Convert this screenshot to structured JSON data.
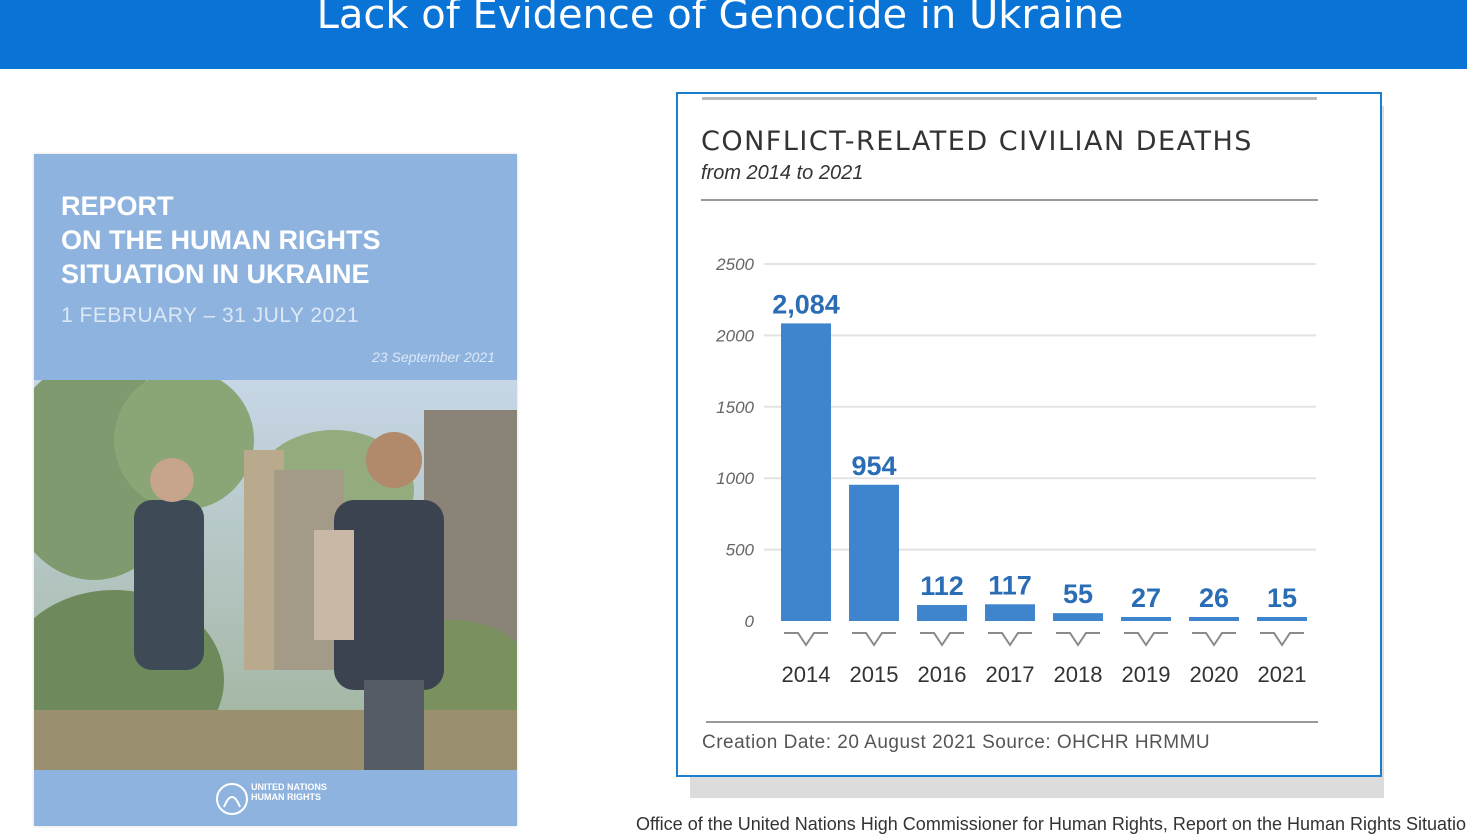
{
  "slide": {
    "title": "Lack of Evidence of Genocide in Ukraine"
  },
  "report_cover": {
    "title": "REPORT\nON THE HUMAN RIGHTS\nSITUATION IN UKRAINE",
    "dates": "1 FEBRUARY – 31 JULY 2021",
    "publication_date": "23 September 2021",
    "logo_text": "UNITED NATIONS\nHUMAN RIGHTS"
  },
  "chart": {
    "footer": "Creation Date: 20 August 2021   Source: OHCHR HRMMU"
  },
  "chart_data": {
    "type": "bar",
    "title": "CONFLICT-RELATED CIVILIAN DEATHS",
    "subtitle": "from 2014 to 2021",
    "categories": [
      "2014",
      "2015",
      "2016",
      "2017",
      "2018",
      "2019",
      "2020",
      "2021"
    ],
    "values": [
      2084,
      954,
      112,
      117,
      55,
      27,
      26,
      15
    ],
    "value_labels": [
      "2,084",
      "954",
      "112",
      "117",
      "55",
      "27",
      "26",
      "15"
    ],
    "y_ticks": [
      "2500",
      "2000",
      "1500",
      "1000",
      "500",
      "0"
    ],
    "ylim": [
      0,
      2500
    ],
    "xlabel": "",
    "ylabel": "",
    "grid": true,
    "bar_color": "#3f85cd",
    "label_color": "#2a6db5"
  },
  "caption": "Office of the United Nations High Commissioner for Human Rights, Report on the Human Rights Situation in Ukraine"
}
